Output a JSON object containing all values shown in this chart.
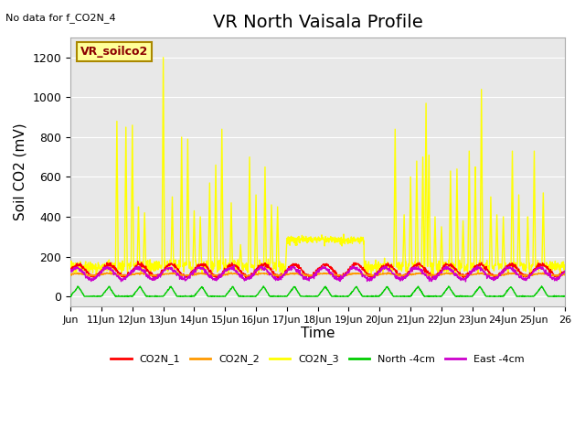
{
  "title": "VR North Vaisala Profile",
  "subtitle": "No data for f_CO2N_4",
  "xlabel": "Time",
  "ylabel": "Soil CO2 (mV)",
  "ylim": [
    -50,
    1300
  ],
  "xlim": [
    0,
    16
  ],
  "legend_label": "VR_soilco2",
  "series_labels": [
    "CO2N_1",
    "CO2N_2",
    "CO2N_3",
    "North -4cm",
    "East -4cm"
  ],
  "series_colors": [
    "#ff0000",
    "#ff9900",
    "#ffff00",
    "#00cc00",
    "#cc00cc"
  ],
  "background_color": "#e8e8e8",
  "grid_color": "#ffffff",
  "xtick_positions": [
    0,
    1,
    2,
    3,
    4,
    5,
    6,
    7,
    8,
    9,
    10,
    11,
    12,
    13,
    14,
    15,
    16
  ],
  "xtick_labels": [
    "Jun",
    "11Jun",
    "12Jun",
    "13Jun",
    "14Jun",
    "15Jun",
    "16Jun",
    "17Jun",
    "18Jun",
    "19Jun",
    "20Jun",
    "21Jun",
    "22Jun",
    "23Jun",
    "24Jun",
    "25Jun",
    "26"
  ],
  "ytick_positions": [
    0,
    200,
    400,
    600,
    800,
    1000,
    1200
  ],
  "ytick_labels": [
    "0",
    "200",
    "400",
    "600",
    "800",
    "1000",
    "1200"
  ],
  "title_fontsize": 14,
  "axis_fontsize": 11,
  "legend_box_color": "#ffff99",
  "legend_box_edge": "#aa8800"
}
